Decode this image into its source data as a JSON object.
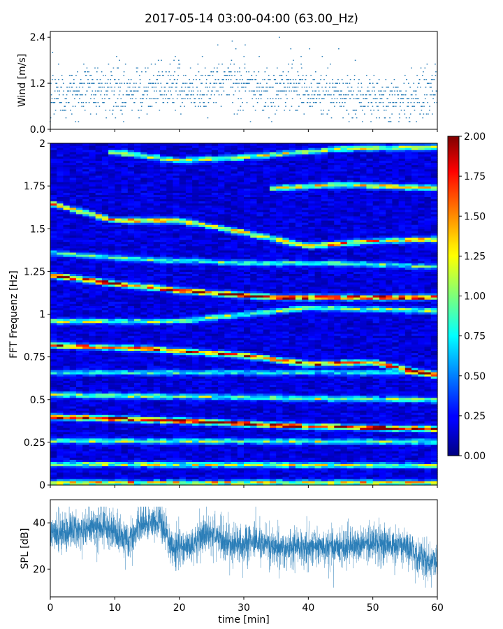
{
  "figure": {
    "title": "2017-05-14 03:00-04:00 (63.00_Hz)"
  },
  "chart_data": [
    {
      "type": "scatter",
      "panel": "wind",
      "ylabel": "Wind [m/s]",
      "xlabel": "",
      "xlim": [
        0,
        60
      ],
      "ylim": [
        0,
        2.55
      ],
      "yticks": [
        0.0,
        1.2,
        2.4
      ],
      "ytick_labels": [
        "0.0",
        "1.2",
        "2.4"
      ],
      "grid": false,
      "color": "#1f77b4",
      "value_step": 0.1,
      "points_per_minute": 22,
      "mean_profile": [
        [
          0,
          0.95
        ],
        [
          5,
          0.95
        ],
        [
          7,
          1.1
        ],
        [
          10,
          1.0
        ],
        [
          15,
          1.0
        ],
        [
          18,
          1.2
        ],
        [
          22,
          1.05
        ],
        [
          25,
          1.1
        ],
        [
          28,
          1.25
        ],
        [
          30,
          1.15
        ],
        [
          33,
          0.95
        ],
        [
          35,
          0.95
        ],
        [
          38,
          1.15
        ],
        [
          40,
          1.0
        ],
        [
          45,
          0.9
        ],
        [
          47,
          0.8
        ],
        [
          50,
          0.8
        ],
        [
          55,
          0.8
        ],
        [
          60,
          0.95
        ]
      ],
      "spread": 0.32,
      "max_value": 2.4,
      "min_value": 0.2
    },
    {
      "type": "heatmap",
      "panel": "spectrogram",
      "ylabel": "FFT Frequenz [Hz]",
      "xlabel": "",
      "xlim": [
        0,
        60
      ],
      "ylim": [
        0,
        2
      ],
      "yticks": [
        0,
        0.25,
        0.5,
        0.75,
        1,
        1.25,
        1.5,
        1.75,
        2
      ],
      "ytick_labels": [
        "0",
        "0.25",
        "0.5",
        "0.75",
        "1",
        "1.25",
        "1.5",
        "1.75",
        "2"
      ],
      "time_bins": 60,
      "freq_bins": 160,
      "background_level": 0.2,
      "colormap": "jet",
      "colorbar": {
        "vmin": 0.0,
        "vmax": 2.0,
        "ticks": [
          0.0,
          0.25,
          0.5,
          0.75,
          1.0,
          1.25,
          1.5,
          1.75,
          2.0
        ],
        "tick_labels": [
          "0.00",
          "0.25",
          "0.50",
          "0.75",
          "1.00",
          "1.25",
          "1.50",
          "1.75",
          "2.00"
        ]
      },
      "ridges": [
        {
          "path": [
            [
              0,
              0.015
            ],
            [
              60,
              0.015
            ]
          ],
          "amp": 1.2
        },
        {
          "path": [
            [
              0,
              0.125
            ],
            [
              60,
              0.115
            ]
          ],
          "amp": 1.0
        },
        {
          "path": [
            [
              0,
              0.26
            ],
            [
              60,
              0.255
            ]
          ],
          "amp": 0.85
        },
        {
          "path": [
            [
              0,
              0.4
            ],
            [
              10,
              0.39
            ],
            [
              25,
              0.37
            ],
            [
              40,
              0.345
            ],
            [
              60,
              0.33
            ]
          ],
          "amp": 1.9
        },
        {
          "path": [
            [
              0,
              0.53
            ],
            [
              60,
              0.5
            ]
          ],
          "amp": 0.9
        },
        {
          "path": [
            [
              0,
              0.66
            ],
            [
              60,
              0.66
            ]
          ],
          "amp": 0.65
        },
        {
          "path": [
            [
              0,
              0.82
            ],
            [
              15,
              0.8
            ],
            [
              30,
              0.76
            ],
            [
              40,
              0.71
            ],
            [
              50,
              0.72
            ],
            [
              60,
              0.64
            ]
          ],
          "amp": 1.6
        },
        {
          "path": [
            [
              0,
              0.96
            ],
            [
              20,
              0.96
            ],
            [
              40,
              1.04
            ],
            [
              60,
              1.02
            ]
          ],
          "amp": 0.95
        },
        {
          "path": [
            [
              0,
              1.23
            ],
            [
              10,
              1.18
            ],
            [
              20,
              1.14
            ],
            [
              35,
              1.1
            ],
            [
              50,
              1.1
            ],
            [
              60,
              1.1
            ]
          ],
          "amp": 1.75
        },
        {
          "path": [
            [
              0,
              1.36
            ],
            [
              15,
              1.32
            ],
            [
              30,
              1.3
            ],
            [
              45,
              1.3
            ],
            [
              60,
              1.28
            ]
          ],
          "amp": 0.75
        },
        {
          "path": [
            [
              0,
              1.65
            ],
            [
              10,
              1.55
            ],
            [
              20,
              1.55
            ],
            [
              30,
              1.48
            ],
            [
              40,
              1.4
            ],
            [
              50,
              1.43
            ],
            [
              60,
              1.44
            ]
          ],
          "amp": 1.3
        },
        {
          "path": [
            [
              35,
              1.74
            ],
            [
              45,
              1.76
            ],
            [
              60,
              1.74
            ]
          ],
          "amp": 1.2
        },
        {
          "path": [
            [
              10,
              1.95
            ],
            [
              20,
              1.9
            ],
            [
              30,
              1.92
            ],
            [
              45,
              1.97
            ],
            [
              60,
              1.98
            ]
          ],
          "amp": 1.05
        }
      ]
    },
    {
      "type": "line",
      "panel": "spl",
      "ylabel": "SPL [dB]",
      "xlabel": "time [min]",
      "xlim": [
        0,
        60
      ],
      "ylim": [
        8,
        50
      ],
      "yticks": [
        20,
        40
      ],
      "ytick_labels": [
        "20",
        "40"
      ],
      "xticks": [
        0,
        10,
        20,
        30,
        40,
        50,
        60
      ],
      "xtick_labels": [
        "0",
        "10",
        "20",
        "30",
        "40",
        "50",
        "60"
      ],
      "grid": false,
      "color": "#1f77b4",
      "samples": 1800,
      "envelope_mean": [
        [
          0,
          35
        ],
        [
          5,
          37
        ],
        [
          8,
          38
        ],
        [
          10,
          36
        ],
        [
          12,
          32
        ],
        [
          14,
          39
        ],
        [
          17,
          41
        ],
        [
          19,
          29
        ],
        [
          22,
          30
        ],
        [
          24,
          36
        ],
        [
          26,
          34
        ],
        [
          28,
          30
        ],
        [
          32,
          32
        ],
        [
          35,
          29
        ],
        [
          40,
          30
        ],
        [
          45,
          29
        ],
        [
          50,
          31
        ],
        [
          55,
          30
        ],
        [
          58,
          24
        ],
        [
          60,
          23
        ]
      ],
      "envelope_spread": 5,
      "peak_max": 47,
      "trough_min": 12
    }
  ]
}
